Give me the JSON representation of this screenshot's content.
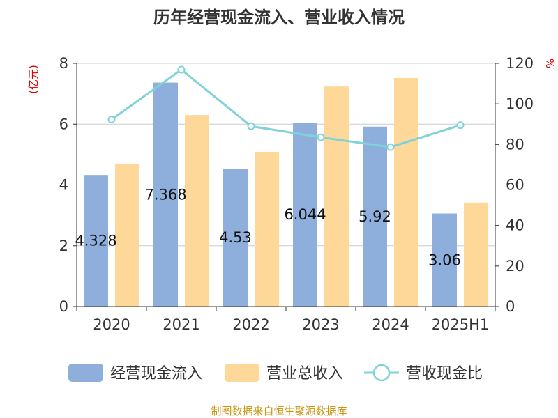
{
  "chart_data": {
    "type": "bar",
    "title": "历年经营现金流入、营业收入情况",
    "categories": [
      "2020",
      "2021",
      "2022",
      "2023",
      "2024",
      "2025H1"
    ],
    "y_left": {
      "label": "(亿元)",
      "ylim": [
        0,
        8
      ],
      "ticks": [
        "0",
        "2",
        "4",
        "6",
        "8"
      ]
    },
    "y_right": {
      "label": "%",
      "ylim": [
        0,
        120
      ],
      "ticks": [
        "0",
        "20",
        "40",
        "60",
        "80",
        "100",
        "120"
      ]
    },
    "grid": true,
    "legend_position": "bottom",
    "series": [
      {
        "name": "经营现金流入",
        "type": "bar",
        "axis": "left",
        "color": "#8eaedc",
        "values": [
          4.328,
          7.368,
          4.53,
          6.044,
          5.92,
          3.06
        ],
        "labels": [
          "4.328",
          "7.368",
          "4.53",
          "6.044",
          "5.92",
          "3.06"
        ]
      },
      {
        "name": "营业总收入",
        "type": "bar",
        "axis": "left",
        "color": "#fdd898",
        "values": [
          4.69,
          6.3,
          5.09,
          7.24,
          7.52,
          3.42
        ]
      },
      {
        "name": "营收现金比",
        "type": "line",
        "axis": "right",
        "color": "#7fd3d8",
        "values": [
          92.3,
          116.9,
          89.0,
          83.5,
          78.7,
          89.5
        ]
      }
    ],
    "source": "制图数据来自恒生聚源数据库",
    "source_color": "#c8960f"
  }
}
